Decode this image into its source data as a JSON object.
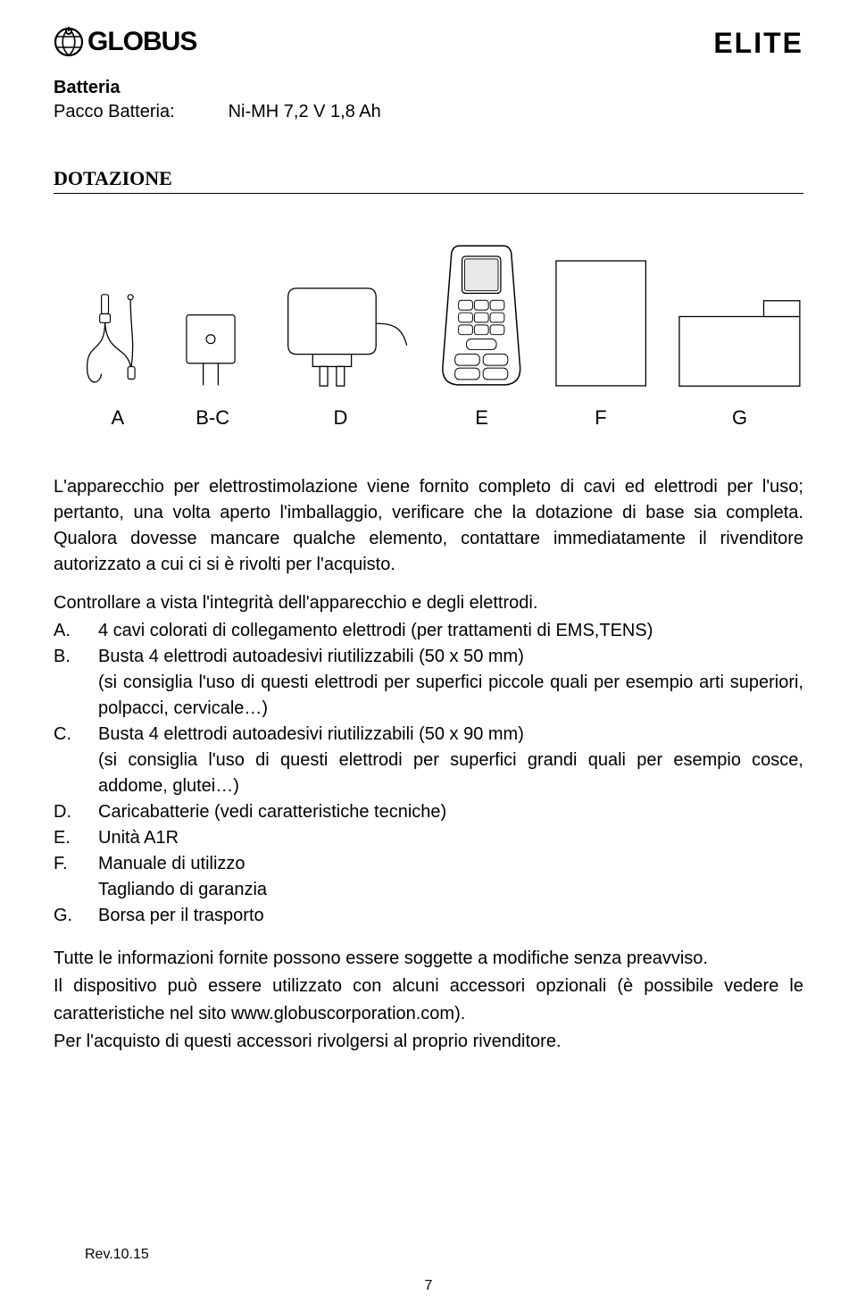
{
  "header": {
    "brand_left": "GLOBUS",
    "brand_right": "ELITE"
  },
  "battery": {
    "title": "Batteria",
    "label": "Pacco Batteria:",
    "value": "Ni-MH 7,2 V 1,8 Ah"
  },
  "dotazione_title": "DOTAZIONE",
  "figure_labels": {
    "a": "A",
    "bc": "B-C",
    "d": "D",
    "e": "E",
    "f": "F",
    "g": "G"
  },
  "intro_text": "L'apparecchio per elettrostimolazione viene fornito completo di cavi ed elettrodi per l'uso; pertanto, una volta aperto l'imballaggio, verificare che la dotazione di base sia completa. Qualora dovesse mancare qualche elemento, contattare immediatamente il rivenditore autorizzato a cui ci si è rivolti per l'acquisto.",
  "check_text": "Controllare a vista l'integrità dell'apparecchio e degli elettrodi.",
  "items": [
    {
      "k": "A.",
      "t": "4 cavi colorati di collegamento elettrodi (per trattamenti di EMS,TENS)"
    },
    {
      "k": "B.",
      "t": "Busta 4 elettrodi autoadesivi riutilizzabili (50 x 50 mm)\n(si consiglia l'uso di questi elettrodi per superfici piccole quali per esempio arti superiori, polpacci, cervicale…)"
    },
    {
      "k": "C.",
      "t": "Busta 4 elettrodi autoadesivi riutilizzabili (50 x 90 mm)\n(si consiglia l'uso di questi elettrodi per superfici grandi quali per esempio cosce, addome, glutei…)"
    },
    {
      "k": "D.",
      "t": "Caricabatterie (vedi caratteristiche tecniche)"
    },
    {
      "k": "E.",
      "t": "Unità A1R"
    },
    {
      "k": "F.",
      "t": "Manuale di utilizzo\nTagliando di garanzia"
    },
    {
      "k": "G.",
      "t": " Borsa per il trasporto"
    }
  ],
  "footer_p1": "Tutte le informazioni fornite possono essere soggette a modifiche senza preavviso.",
  "footer_p2": "Il dispositivo può essere utilizzato con alcuni accessori opzionali (è possibile vedere le caratteristiche nel sito www.globuscorporation.com).",
  "footer_p3": "Per l'acquisto di questi accessori rivolgersi al proprio rivenditore.",
  "rev": "Rev.10.15",
  "page": "7",
  "style": {
    "page_bg": "#ffffff",
    "text_color": "#000000",
    "line_color": "#000000",
    "body_font_size_pt": 15,
    "title_font_size_pt": 17,
    "brand_left_font_size_pt": 23,
    "brand_right_font_size_pt": 24
  }
}
